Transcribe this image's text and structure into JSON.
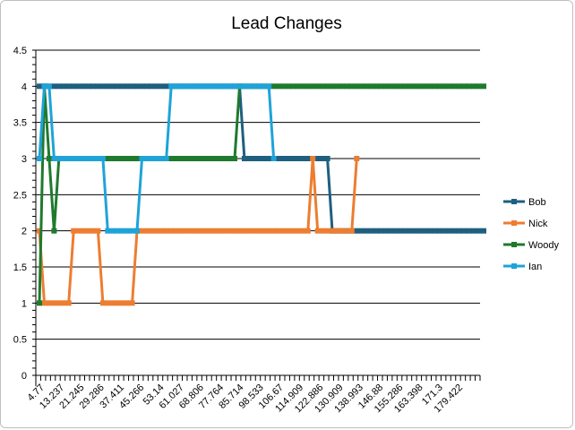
{
  "chart_data": {
    "type": "line",
    "title": "Lead Changes",
    "xlabel": "",
    "ylabel": "",
    "ylim": [
      0,
      4.5
    ],
    "yticks": [
      "0",
      "0.5",
      "1",
      "1.5",
      "2",
      "2.5",
      "3",
      "3.5",
      "4",
      "4.5"
    ],
    "grid": true,
    "legend_position": "right",
    "x_tick_labels": [
      "4.77",
      "13.237",
      "21.245",
      "29.286",
      "37.411",
      "45.266",
      "53.14",
      "61.027",
      "68.806",
      "77.764",
      "85.714",
      "98.533",
      "106.67",
      "114.909",
      "122.886",
      "130.909",
      "138.993",
      "146.88",
      "155.286",
      "163.398",
      "171.3",
      "179.422"
    ],
    "series": [
      {
        "name": "Bob",
        "color": "#1F5F7F",
        "values": [
          4,
          4,
          4,
          4,
          4,
          4,
          4,
          4,
          4,
          4,
          4,
          4,
          4,
          4,
          4,
          4,
          4,
          4,
          4,
          4,
          4,
          4,
          4,
          4,
          4,
          4,
          4,
          4,
          4,
          4,
          4,
          4,
          4,
          4,
          4,
          4,
          4,
          4,
          4,
          4,
          4,
          4,
          3,
          3,
          3,
          3,
          3,
          3,
          3,
          3,
          3,
          3,
          3,
          3,
          3,
          3,
          3,
          3,
          3,
          3,
          2,
          2,
          2,
          2,
          2,
          2,
          2,
          2,
          2,
          2,
          2,
          2,
          2,
          2,
          2,
          2,
          2,
          2,
          2,
          2,
          2,
          2,
          2,
          2,
          2,
          2,
          2,
          2,
          2,
          2,
          2,
          2
        ]
      },
      {
        "name": "Nick",
        "color": "#ED7D31",
        "values": [
          2,
          1,
          1,
          1,
          1,
          1,
          1,
          2,
          2,
          2,
          2,
          2,
          2,
          1,
          1,
          1,
          1,
          1,
          1,
          1,
          2,
          2,
          2,
          2,
          2,
          2,
          2,
          2,
          2,
          2,
          2,
          2,
          2,
          2,
          2,
          2,
          2,
          2,
          2,
          2,
          2,
          2,
          2,
          2,
          2,
          2,
          2,
          2,
          2,
          2,
          2,
          2,
          2,
          2,
          2,
          2,
          3,
          2,
          2,
          2,
          2,
          2,
          2,
          2,
          2,
          3
        ]
      },
      {
        "name": "Woody",
        "color": "#1F7A2E",
        "values": [
          1,
          4,
          3,
          2,
          3,
          3,
          3,
          3,
          3,
          3,
          3,
          3,
          3,
          3,
          3,
          3,
          3,
          3,
          3,
          3,
          3,
          3,
          3,
          3,
          3,
          3,
          3,
          3,
          3,
          3,
          3,
          3,
          3,
          3,
          3,
          3,
          3,
          3,
          3,
          3,
          3,
          4,
          4,
          4,
          4,
          4,
          4,
          4,
          4,
          4,
          4,
          4,
          4,
          4,
          4,
          4,
          4,
          4,
          4,
          4,
          4,
          4,
          4,
          4,
          4,
          4,
          4,
          4,
          4,
          4,
          4,
          4,
          4,
          4,
          4,
          4,
          4,
          4,
          4,
          4,
          4,
          4,
          4,
          4,
          4,
          4,
          4,
          4,
          4,
          4,
          4,
          4
        ]
      },
      {
        "name": "Ian",
        "color": "#1FA3D8",
        "values": [
          3,
          4,
          4,
          3,
          3,
          3,
          3,
          3,
          3,
          3,
          3,
          3,
          3,
          3,
          2,
          2,
          2,
          2,
          2,
          2,
          2,
          3,
          3,
          3,
          3,
          3,
          3,
          4,
          4,
          4,
          4,
          4,
          4,
          4,
          4,
          4,
          4,
          4,
          4,
          4,
          4,
          4,
          4,
          4,
          4,
          4,
          4,
          4,
          3
        ]
      }
    ]
  }
}
